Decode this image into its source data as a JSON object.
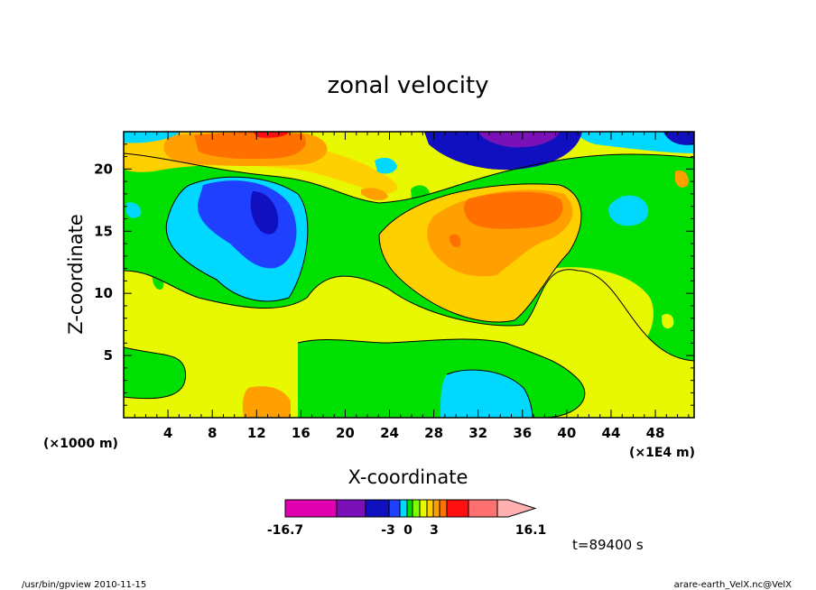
{
  "chart_data": {
    "type": "heatmap",
    "title": "zonal velocity",
    "xlabel": "X-coordinate",
    "ylabel": "Z-coordinate",
    "x_units": "(×1E4 m)",
    "y_units": "(×1000 m)",
    "xlim": [
      0,
      51.5
    ],
    "ylim": [
      0,
      23
    ],
    "x_ticks": [
      4,
      8,
      12,
      16,
      20,
      24,
      28,
      32,
      36,
      40,
      44,
      48
    ],
    "y_ticks": [
      5,
      10,
      15,
      20
    ],
    "colorbar": {
      "min_label": "-16.7",
      "max_label": "16.1",
      "center_labels": [
        "-3",
        "0",
        "3"
      ],
      "colors": [
        "#e000b0",
        "#7a10b8",
        "#1010c0",
        "#2040ff",
        "#00d8ff",
        "#00e000",
        "#80ff00",
        "#e8f800",
        "#ffd000",
        "#ffa000",
        "#ff7000",
        "#ff1010",
        "#ff7070",
        "#ffb0b0"
      ],
      "levels": [
        -16.7,
        -10,
        -6,
        -4,
        -3,
        -2,
        -1,
        0,
        1,
        2,
        3,
        6,
        10,
        16.1
      ]
    },
    "time_label": "t=89400 s"
  },
  "footer": {
    "left": "/usr/bin/gpview   2010-11-15",
    "right": "arare-earth_VelX.nc@VelX"
  }
}
